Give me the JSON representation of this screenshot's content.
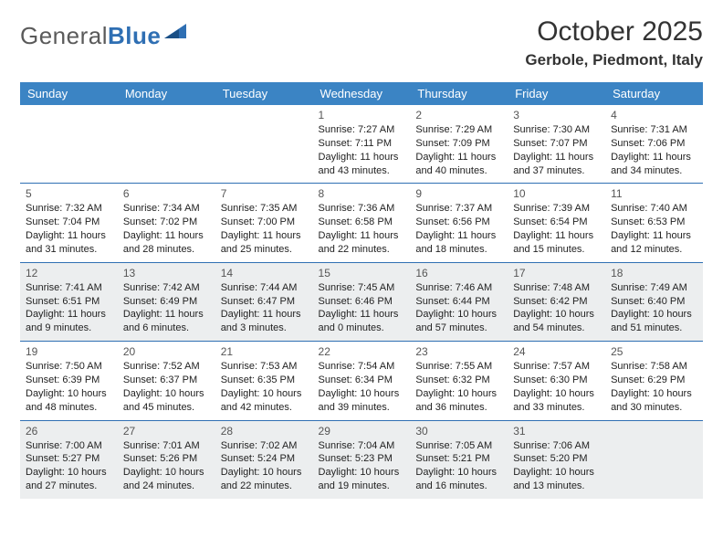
{
  "logo": {
    "text1": "General",
    "text2": "Blue"
  },
  "title": "October 2025",
  "location": "Gerbole, Piedmont, Italy",
  "colors": {
    "header_bg": "#3b84c4",
    "header_fg": "#ffffff",
    "row_border": "#2f6fb3",
    "alt_row_bg": "#eceeef",
    "text": "#222222",
    "logo_gray": "#5a5a5a",
    "logo_blue": "#2f6fb3"
  },
  "day_headers": [
    "Sunday",
    "Monday",
    "Tuesday",
    "Wednesday",
    "Thursday",
    "Friday",
    "Saturday"
  ],
  "weeks": [
    {
      "alt": false,
      "cells": [
        null,
        null,
        null,
        {
          "d": "1",
          "sr": "Sunrise: 7:27 AM",
          "ss": "Sunset: 7:11 PM",
          "dl1": "Daylight: 11 hours",
          "dl2": "and 43 minutes."
        },
        {
          "d": "2",
          "sr": "Sunrise: 7:29 AM",
          "ss": "Sunset: 7:09 PM",
          "dl1": "Daylight: 11 hours",
          "dl2": "and 40 minutes."
        },
        {
          "d": "3",
          "sr": "Sunrise: 7:30 AM",
          "ss": "Sunset: 7:07 PM",
          "dl1": "Daylight: 11 hours",
          "dl2": "and 37 minutes."
        },
        {
          "d": "4",
          "sr": "Sunrise: 7:31 AM",
          "ss": "Sunset: 7:06 PM",
          "dl1": "Daylight: 11 hours",
          "dl2": "and 34 minutes."
        }
      ]
    },
    {
      "alt": false,
      "cells": [
        {
          "d": "5",
          "sr": "Sunrise: 7:32 AM",
          "ss": "Sunset: 7:04 PM",
          "dl1": "Daylight: 11 hours",
          "dl2": "and 31 minutes."
        },
        {
          "d": "6",
          "sr": "Sunrise: 7:34 AM",
          "ss": "Sunset: 7:02 PM",
          "dl1": "Daylight: 11 hours",
          "dl2": "and 28 minutes."
        },
        {
          "d": "7",
          "sr": "Sunrise: 7:35 AM",
          "ss": "Sunset: 7:00 PM",
          "dl1": "Daylight: 11 hours",
          "dl2": "and 25 minutes."
        },
        {
          "d": "8",
          "sr": "Sunrise: 7:36 AM",
          "ss": "Sunset: 6:58 PM",
          "dl1": "Daylight: 11 hours",
          "dl2": "and 22 minutes."
        },
        {
          "d": "9",
          "sr": "Sunrise: 7:37 AM",
          "ss": "Sunset: 6:56 PM",
          "dl1": "Daylight: 11 hours",
          "dl2": "and 18 minutes."
        },
        {
          "d": "10",
          "sr": "Sunrise: 7:39 AM",
          "ss": "Sunset: 6:54 PM",
          "dl1": "Daylight: 11 hours",
          "dl2": "and 15 minutes."
        },
        {
          "d": "11",
          "sr": "Sunrise: 7:40 AM",
          "ss": "Sunset: 6:53 PM",
          "dl1": "Daylight: 11 hours",
          "dl2": "and 12 minutes."
        }
      ]
    },
    {
      "alt": true,
      "cells": [
        {
          "d": "12",
          "sr": "Sunrise: 7:41 AM",
          "ss": "Sunset: 6:51 PM",
          "dl1": "Daylight: 11 hours",
          "dl2": "and 9 minutes."
        },
        {
          "d": "13",
          "sr": "Sunrise: 7:42 AM",
          "ss": "Sunset: 6:49 PM",
          "dl1": "Daylight: 11 hours",
          "dl2": "and 6 minutes."
        },
        {
          "d": "14",
          "sr": "Sunrise: 7:44 AM",
          "ss": "Sunset: 6:47 PM",
          "dl1": "Daylight: 11 hours",
          "dl2": "and 3 minutes."
        },
        {
          "d": "15",
          "sr": "Sunrise: 7:45 AM",
          "ss": "Sunset: 6:46 PM",
          "dl1": "Daylight: 11 hours",
          "dl2": "and 0 minutes."
        },
        {
          "d": "16",
          "sr": "Sunrise: 7:46 AM",
          "ss": "Sunset: 6:44 PM",
          "dl1": "Daylight: 10 hours",
          "dl2": "and 57 minutes."
        },
        {
          "d": "17",
          "sr": "Sunrise: 7:48 AM",
          "ss": "Sunset: 6:42 PM",
          "dl1": "Daylight: 10 hours",
          "dl2": "and 54 minutes."
        },
        {
          "d": "18",
          "sr": "Sunrise: 7:49 AM",
          "ss": "Sunset: 6:40 PM",
          "dl1": "Daylight: 10 hours",
          "dl2": "and 51 minutes."
        }
      ]
    },
    {
      "alt": false,
      "cells": [
        {
          "d": "19",
          "sr": "Sunrise: 7:50 AM",
          "ss": "Sunset: 6:39 PM",
          "dl1": "Daylight: 10 hours",
          "dl2": "and 48 minutes."
        },
        {
          "d": "20",
          "sr": "Sunrise: 7:52 AM",
          "ss": "Sunset: 6:37 PM",
          "dl1": "Daylight: 10 hours",
          "dl2": "and 45 minutes."
        },
        {
          "d": "21",
          "sr": "Sunrise: 7:53 AM",
          "ss": "Sunset: 6:35 PM",
          "dl1": "Daylight: 10 hours",
          "dl2": "and 42 minutes."
        },
        {
          "d": "22",
          "sr": "Sunrise: 7:54 AM",
          "ss": "Sunset: 6:34 PM",
          "dl1": "Daylight: 10 hours",
          "dl2": "and 39 minutes."
        },
        {
          "d": "23",
          "sr": "Sunrise: 7:55 AM",
          "ss": "Sunset: 6:32 PM",
          "dl1": "Daylight: 10 hours",
          "dl2": "and 36 minutes."
        },
        {
          "d": "24",
          "sr": "Sunrise: 7:57 AM",
          "ss": "Sunset: 6:30 PM",
          "dl1": "Daylight: 10 hours",
          "dl2": "and 33 minutes."
        },
        {
          "d": "25",
          "sr": "Sunrise: 7:58 AM",
          "ss": "Sunset: 6:29 PM",
          "dl1": "Daylight: 10 hours",
          "dl2": "and 30 minutes."
        }
      ]
    },
    {
      "alt": true,
      "cells": [
        {
          "d": "26",
          "sr": "Sunrise: 7:00 AM",
          "ss": "Sunset: 5:27 PM",
          "dl1": "Daylight: 10 hours",
          "dl2": "and 27 minutes."
        },
        {
          "d": "27",
          "sr": "Sunrise: 7:01 AM",
          "ss": "Sunset: 5:26 PM",
          "dl1": "Daylight: 10 hours",
          "dl2": "and 24 minutes."
        },
        {
          "d": "28",
          "sr": "Sunrise: 7:02 AM",
          "ss": "Sunset: 5:24 PM",
          "dl1": "Daylight: 10 hours",
          "dl2": "and 22 minutes."
        },
        {
          "d": "29",
          "sr": "Sunrise: 7:04 AM",
          "ss": "Sunset: 5:23 PM",
          "dl1": "Daylight: 10 hours",
          "dl2": "and 19 minutes."
        },
        {
          "d": "30",
          "sr": "Sunrise: 7:05 AM",
          "ss": "Sunset: 5:21 PM",
          "dl1": "Daylight: 10 hours",
          "dl2": "and 16 minutes."
        },
        {
          "d": "31",
          "sr": "Sunrise: 7:06 AM",
          "ss": "Sunset: 5:20 PM",
          "dl1": "Daylight: 10 hours",
          "dl2": "and 13 minutes."
        },
        null
      ]
    }
  ]
}
